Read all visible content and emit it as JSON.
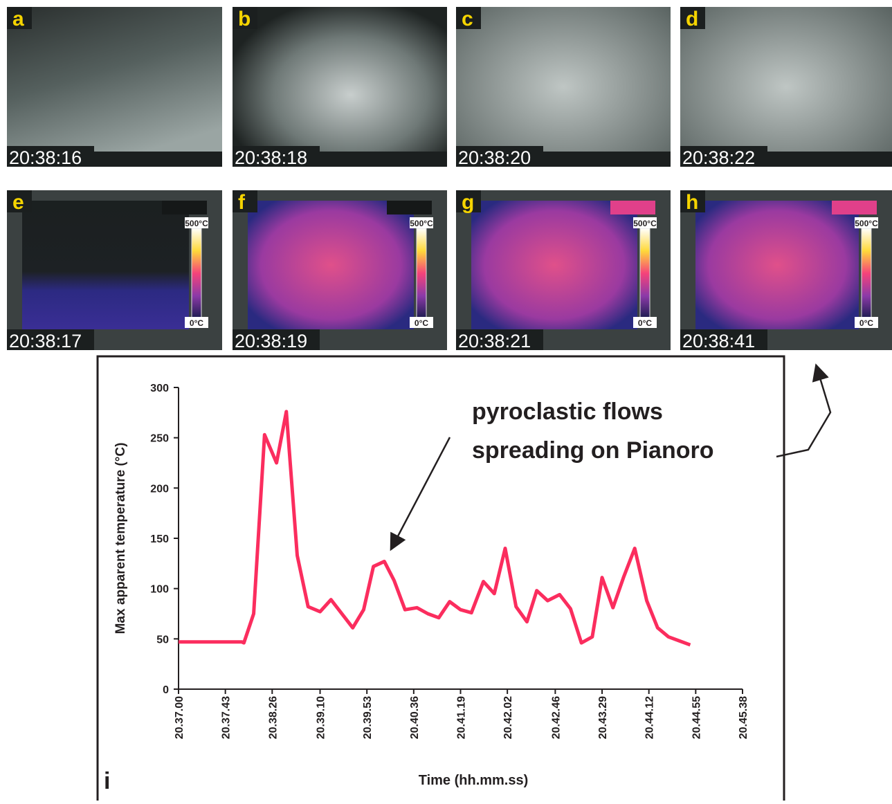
{
  "panels": [
    {
      "label": "a",
      "time": "20:38:16"
    },
    {
      "label": "b",
      "time": "20:38:18"
    },
    {
      "label": "c",
      "time": "20:38:20"
    },
    {
      "label": "d",
      "time": "20:38:22"
    },
    {
      "label": "e",
      "time": "20:38:17",
      "scale": [
        "500°C",
        "0°C"
      ]
    },
    {
      "label": "f",
      "time": "20:38:19",
      "scale": [
        "500°C",
        "0°C"
      ]
    },
    {
      "label": "g",
      "time": "20:38:21",
      "scale": [
        "500°C",
        "0°C"
      ]
    },
    {
      "label": "h",
      "time": "20:38:41",
      "scale": [
        "500°C",
        "0°C"
      ]
    }
  ],
  "chart_data": {
    "type": "line",
    "panel_label": "i",
    "ylabel": "Max apparent temperature (°C)",
    "xlabel": "Time (hh.mm.ss)",
    "annotation": [
      "pyroclastic flows",
      "spreading on Pianoro"
    ],
    "x": [
      "20.37.00",
      "20.37.58",
      "20.38.00",
      "20.38.09",
      "20.38.19",
      "20.38.30",
      "20.38.39",
      "20.38.49",
      "20.38.59",
      "20.39.10",
      "20.39.20",
      "20.39.30",
      "20.39.40",
      "20.39.50",
      "20.39.59",
      "20.40.09",
      "20.40.18",
      "20.40.28",
      "20.40.39",
      "20.40.49",
      "20.40.59",
      "20.41.09",
      "20.41.19",
      "20.41.29",
      "20.41.40",
      "20.41.50",
      "20.42.00",
      "20.42.10",
      "20.42.20",
      "20.42.29",
      "20.42.39",
      "20.42.50",
      "20.43.00",
      "20.43.10",
      "20.43.20",
      "20.43.29",
      "20.43.39",
      "20.43.49",
      "20.43.59",
      "20.44.10",
      "20.44.20",
      "20.44.30",
      "20.44.40",
      "20.44.50"
    ],
    "series": [
      {
        "color": "#fb2d5e",
        "values": [
          47,
          47,
          46,
          75,
          253,
          225,
          276,
          133,
          82,
          77,
          89,
          75,
          61,
          79,
          122,
          127,
          108,
          79,
          81,
          75,
          71,
          87,
          79,
          76,
          107,
          95,
          140,
          82,
          67,
          98,
          88,
          94,
          80,
          46,
          52,
          111,
          81,
          112,
          140,
          88,
          61,
          52,
          48,
          44
        ]
      }
    ],
    "xlim": [
      "20.37.00",
      "20.45.38"
    ],
    "xticks": [
      "20.37.00",
      "20.37.43",
      "20.38.26",
      "20.39.10",
      "20.39.53",
      "20.40.36",
      "20.41.19",
      "20.42.02",
      "20.42.46",
      "20.43.29",
      "20.44.12",
      "20.44.55",
      "20.45.38"
    ],
    "ylim": [
      0,
      300
    ],
    "yticks": [
      0,
      50,
      100,
      150,
      200,
      250,
      300
    ]
  }
}
